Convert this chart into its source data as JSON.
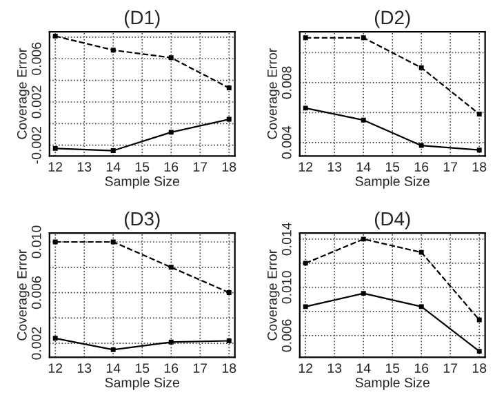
{
  "chart_data": [
    {
      "type": "line",
      "title": "(D1)",
      "xlabel": "Sample Size",
      "ylabel": "Coverage Error",
      "x": [
        12,
        14,
        16,
        18
      ],
      "xlim": [
        11.8,
        18.2
      ],
      "xticks": [
        12,
        13,
        14,
        15,
        16,
        17,
        18
      ],
      "ylim": [
        -0.003,
        0.0085
      ],
      "yticks": [
        -0.002,
        {
          "value": 0.0,
          "label": null
        },
        0.002,
        {
          "value": 0.004,
          "label": null
        },
        0.006,
        {
          "value": 0.008,
          "label": null
        }
      ],
      "grid": true,
      "marker": "square",
      "series": [
        {
          "color": "#000000",
          "line_style": "dashed",
          "values": [
            0.0081,
            0.0068,
            0.0061,
            0.0033
          ]
        },
        {
          "color": "#000000",
          "line_style": "solid",
          "values": [
            -0.0023,
            -0.0025,
            -0.0008,
            0.0004
          ]
        }
      ]
    },
    {
      "type": "line",
      "title": "(D2)",
      "xlabel": "Sample Size",
      "ylabel": "Coverage Error",
      "x": [
        12,
        14,
        16,
        18
      ],
      "xlim": [
        11.8,
        18.2
      ],
      "xticks": [
        12,
        13,
        14,
        15,
        16,
        17,
        18
      ],
      "ylim": [
        0.0031,
        0.0114
      ],
      "yticks": [
        0.004,
        {
          "value": 0.006,
          "label": null
        },
        0.008,
        {
          "value": 0.01,
          "label": null
        }
      ],
      "grid": true,
      "marker": "square",
      "series": [
        {
          "color": "#000000",
          "line_style": "dashed",
          "values": [
            0.011,
            0.011,
            0.009,
            0.0059
          ]
        },
        {
          "color": "#000000",
          "line_style": "solid",
          "values": [
            0.0063,
            0.0055,
            0.0038,
            0.0035
          ]
        }
      ]
    },
    {
      "type": "line",
      "title": "(D3)",
      "xlabel": "Sample Size",
      "ylabel": "Coverage Error",
      "x": [
        12,
        14,
        16,
        18
      ],
      "xlim": [
        11.8,
        18.2
      ],
      "xticks": [
        12,
        13,
        14,
        15,
        16,
        17,
        18
      ],
      "ylim": [
        0.0009,
        0.0107
      ],
      "yticks": [
        0.002,
        {
          "value": 0.004,
          "label": null
        },
        0.006,
        {
          "value": 0.008,
          "label": null
        },
        {
          "value": 0.01,
          "label": "0.010"
        }
      ],
      "grid": true,
      "marker": "square",
      "series": [
        {
          "color": "#000000",
          "line_style": "dashed",
          "values": [
            0.01,
            0.01,
            0.008,
            0.006
          ]
        },
        {
          "color": "#000000",
          "line_style": "solid",
          "values": [
            0.0024,
            0.0015,
            0.0021,
            0.0022
          ]
        }
      ]
    },
    {
      "type": "line",
      "title": "(D4)",
      "xlabel": "Sample Size",
      "ylabel": "Coverage Error",
      "x": [
        12,
        14,
        16,
        18
      ],
      "xlim": [
        11.8,
        18.2
      ],
      "xticks": [
        12,
        13,
        14,
        15,
        16,
        17,
        18
      ],
      "ylim": [
        0.0042,
        0.0145
      ],
      "yticks": [
        0.006,
        {
          "value": 0.008,
          "label": null
        },
        {
          "value": 0.01,
          "label": "0.010"
        },
        {
          "value": 0.012,
          "label": null
        },
        0.014
      ],
      "grid": true,
      "marker": "square",
      "series": [
        {
          "color": "#000000",
          "line_style": "dashed",
          "values": [
            0.012,
            0.014,
            0.0129,
            0.0073
          ]
        },
        {
          "color": "#000000",
          "line_style": "solid",
          "values": [
            0.0084,
            0.0095,
            0.0084,
            0.0047
          ]
        }
      ]
    }
  ]
}
